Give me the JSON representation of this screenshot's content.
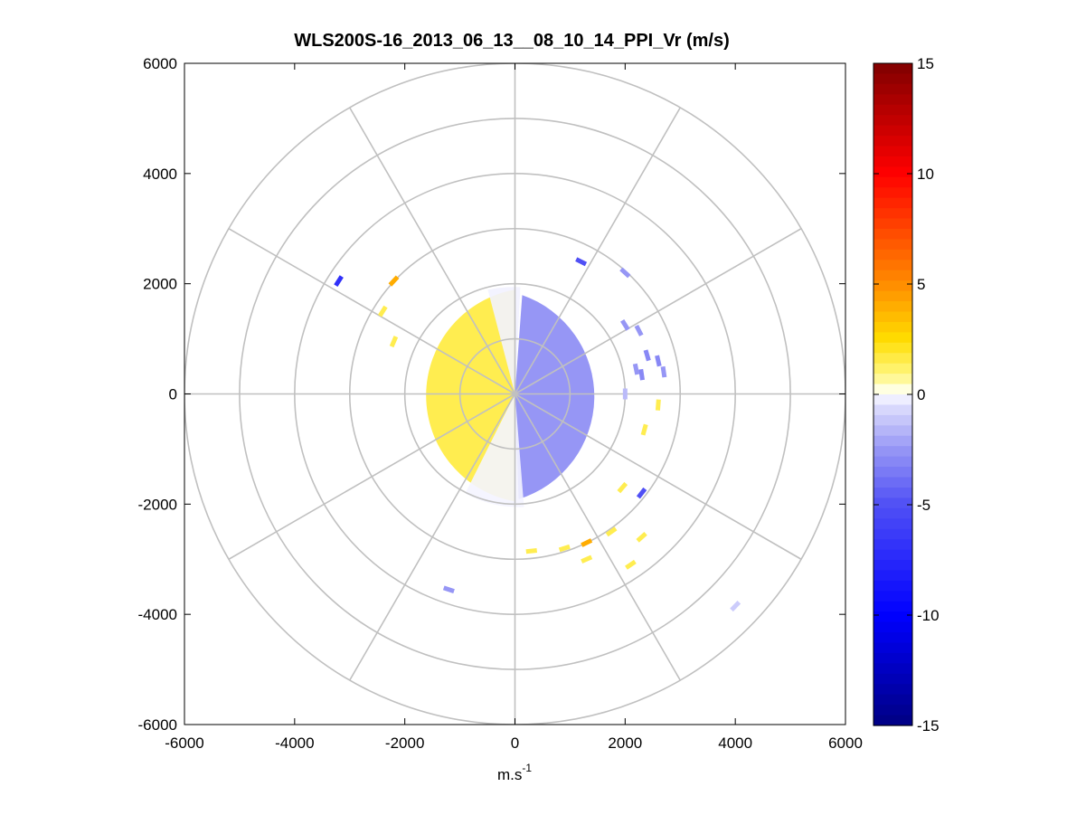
{
  "chart_data": {
    "type": "heatmap",
    "title": "WLS200S-16_2013_06_13__08_10_14_PPI_Vr (m/s)",
    "xlabel": "m.s",
    "xlabel_superscript": "-1",
    "ylabel": "",
    "xlim": [
      -6000,
      6000
    ],
    "ylim": [
      -6000,
      6000
    ],
    "x_ticks": [
      "-6000",
      "-4000",
      "-2000",
      "0",
      "2000",
      "4000",
      "6000"
    ],
    "y_ticks": [
      "6000",
      "4000",
      "2000",
      "0",
      "-2000",
      "-4000",
      "-6000"
    ],
    "grid": "polar",
    "polar_grid": {
      "ring_ranges_m": [
        1000,
        2000,
        3000,
        4000,
        5000,
        6000
      ],
      "spoke_angles_deg": [
        0,
        30,
        60,
        90,
        120,
        150,
        180,
        210,
        240,
        270,
        300,
        330
      ]
    },
    "colorbar": {
      "range": [
        -15,
        15
      ],
      "ticks": [
        "15",
        "10",
        "5",
        "0",
        "-5",
        "-10",
        "-15"
      ],
      "placement": "right",
      "colormap": "blue-white-yellow-red"
    },
    "scan": {
      "max_range_m": 1950,
      "approaching_side": "west",
      "receding_side": "east",
      "approaching_velocity_m_s": 1.5,
      "receding_velocity_m_s": -2.5
    },
    "scattered_returns": [
      {
        "x": 1200,
        "y": 2400,
        "v": -5
      },
      {
        "x": 2000,
        "y": 2200,
        "v": -2.5
      },
      {
        "x": 2000,
        "y": 1250,
        "v": -2.5
      },
      {
        "x": 2250,
        "y": 1150,
        "v": -2.5
      },
      {
        "x": 2400,
        "y": 700,
        "v": -3
      },
      {
        "x": 2600,
        "y": 600,
        "v": -3
      },
      {
        "x": 2700,
        "y": 400,
        "v": -2.5
      },
      {
        "x": 2200,
        "y": 450,
        "v": -2.5
      },
      {
        "x": 2300,
        "y": 350,
        "v": -3
      },
      {
        "x": 2600,
        "y": -200,
        "v": 1.5
      },
      {
        "x": 2350,
        "y": -650,
        "v": 1.5
      },
      {
        "x": 2300,
        "y": -1800,
        "v": -5
      },
      {
        "x": 1950,
        "y": -1700,
        "v": 1.5
      },
      {
        "x": 1300,
        "y": -2700,
        "v": 4
      },
      {
        "x": 1750,
        "y": -2500,
        "v": 1.5
      },
      {
        "x": 2300,
        "y": -2600,
        "v": 1.5
      },
      {
        "x": 2100,
        "y": -3100,
        "v": 1.5
      },
      {
        "x": 1300,
        "y": -3000,
        "v": 1.5
      },
      {
        "x": 900,
        "y": -2800,
        "v": 1.5
      },
      {
        "x": 300,
        "y": -2850,
        "v": 1.5
      },
      {
        "x": -3200,
        "y": 2050,
        "v": -7
      },
      {
        "x": -2200,
        "y": 2050,
        "v": 4
      },
      {
        "x": -2400,
        "y": 1500,
        "v": 1.5
      },
      {
        "x": -2200,
        "y": 950,
        "v": 1.5
      },
      {
        "x": -1200,
        "y": -3550,
        "v": -2.5
      },
      {
        "x": 4000,
        "y": -3850,
        "v": -1
      },
      {
        "x": 2000,
        "y": 0,
        "v": -1.5
      }
    ]
  }
}
